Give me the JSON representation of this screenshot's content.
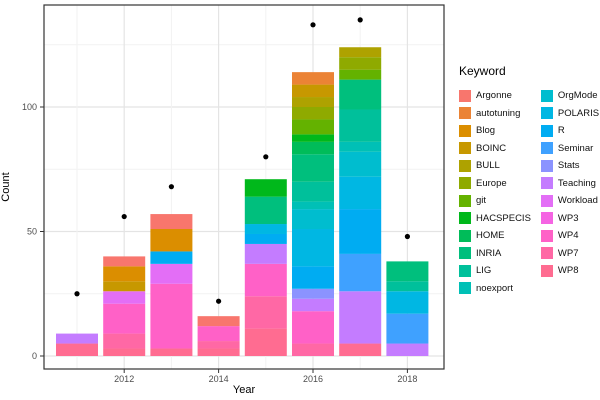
{
  "chart_data": {
    "type": "bar",
    "subtype": "stacked-bar-with-points",
    "title": "",
    "xlabel": "Year",
    "ylabel": "Count",
    "legend_title": "Keyword",
    "x_axis": {
      "ticks": [
        2012,
        2014,
        2016,
        2018
      ],
      "minor_years": [
        2011,
        2013,
        2015,
        2017
      ]
    },
    "y_axis": {
      "ticks": [
        0,
        50,
        100
      ],
      "minor_ticks": [
        25,
        75,
        125
      ],
      "ylim": [
        0,
        140
      ]
    },
    "grid": "on",
    "legend_position": "right",
    "keywords": [
      {
        "name": "Argonne",
        "color": "#F8766D"
      },
      {
        "name": "autotuning",
        "color": "#EB8335"
      },
      {
        "name": "Blog",
        "color": "#DB8E00"
      },
      {
        "name": "BOINC",
        "color": "#C79800"
      },
      {
        "name": "BULL",
        "color": "#AEA200"
      },
      {
        "name": "Europe",
        "color": "#8FAA00"
      },
      {
        "name": "git",
        "color": "#64B200"
      },
      {
        "name": "HACSPECIS",
        "color": "#00B81B"
      },
      {
        "name": "HOME",
        "color": "#00BC59"
      },
      {
        "name": "INRIA",
        "color": "#00BF7D"
      },
      {
        "name": "LIG",
        "color": "#00C09B"
      },
      {
        "name": "noexport",
        "color": "#00C0B6"
      },
      {
        "name": "OrgMode",
        "color": "#00BDCF"
      },
      {
        "name": "POLARIS",
        "color": "#00B7E3"
      },
      {
        "name": "R",
        "color": "#00ACF2"
      },
      {
        "name": "Seminar",
        "color": "#3FA1FF"
      },
      {
        "name": "Stats",
        "color": "#8B93FF"
      },
      {
        "name": "Teaching",
        "color": "#C47CFF"
      },
      {
        "name": "Workload",
        "color": "#E36EF6"
      },
      {
        "name": "WP3",
        "color": "#F564E3"
      },
      {
        "name": "WP4",
        "color": "#FF61C7"
      },
      {
        "name": "WP7",
        "color": "#FF68A5"
      },
      {
        "name": "WP8",
        "color": "#FF6C91"
      }
    ],
    "bars": [
      {
        "year": 2011,
        "total": 9,
        "segments_top_to_bottom": [
          [
            "Teaching",
            4
          ],
          [
            "WP8",
            5
          ]
        ]
      },
      {
        "year": 2012,
        "total": 40,
        "segments_top_to_bottom": [
          [
            "Argonne",
            4
          ],
          [
            "Blog",
            6
          ],
          [
            "BOINC",
            4
          ],
          [
            "Workload",
            5
          ],
          [
            "WP4",
            12
          ],
          [
            "WP7",
            6
          ],
          [
            "WP8",
            3
          ]
        ]
      },
      {
        "year": 2013,
        "total": 57,
        "segments_top_to_bottom": [
          [
            "Argonne",
            6
          ],
          [
            "Blog",
            9
          ],
          [
            "R",
            5
          ],
          [
            "Workload",
            8
          ],
          [
            "WP4",
            26
          ],
          [
            "WP8",
            3
          ]
        ]
      },
      {
        "year": 2014,
        "total": 16,
        "segments_top_to_bottom": [
          [
            "Argonne",
            4
          ],
          [
            "WP4",
            6
          ],
          [
            "WP7",
            3
          ],
          [
            "WP8",
            3
          ]
        ]
      },
      {
        "year": 2015,
        "total": 71,
        "segments_top_to_bottom": [
          [
            "HACSPECIS",
            7
          ],
          [
            "INRIA",
            11
          ],
          [
            "POLARIS",
            4
          ],
          [
            "R",
            4
          ],
          [
            "Teaching",
            8
          ],
          [
            "WP4",
            13
          ],
          [
            "WP7",
            13
          ],
          [
            "WP8",
            11
          ]
        ]
      },
      {
        "year": 2016,
        "total": 114,
        "segments_top_to_bottom": [
          [
            "autotuning",
            5
          ],
          [
            "BOINC",
            5
          ],
          [
            "BULL",
            4
          ],
          [
            "Europe",
            5
          ],
          [
            "git",
            6
          ],
          [
            "HACSPECIS",
            3
          ],
          [
            "HOME",
            5
          ],
          [
            "INRIA",
            11
          ],
          [
            "LIG",
            8
          ],
          [
            "noexport",
            3
          ],
          [
            "OrgMode",
            8
          ],
          [
            "POLARIS",
            15
          ],
          [
            "R",
            9
          ],
          [
            "Stats",
            4
          ],
          [
            "Teaching",
            5
          ],
          [
            "WP4",
            13
          ],
          [
            "WP7",
            5
          ]
        ]
      },
      {
        "year": 2017,
        "total": 124,
        "segments_top_to_bottom": [
          [
            "BULL",
            4
          ],
          [
            "Europe",
            5
          ],
          [
            "git",
            4
          ],
          [
            "INRIA",
            12
          ],
          [
            "LIG",
            13
          ],
          [
            "noexport",
            4
          ],
          [
            "OrgMode",
            10
          ],
          [
            "POLARIS",
            13
          ],
          [
            "R",
            18
          ],
          [
            "Seminar",
            15
          ],
          [
            "Teaching",
            21
          ],
          [
            "WP8",
            5
          ]
        ]
      },
      {
        "year": 2018,
        "total": 38,
        "segments_top_to_bottom": [
          [
            "INRIA",
            8
          ],
          [
            "LIG",
            4
          ],
          [
            "POLARIS",
            9
          ],
          [
            "Seminar",
            12
          ],
          [
            "Teaching",
            5
          ]
        ]
      }
    ],
    "dots": [
      {
        "year": 2011,
        "value": 25
      },
      {
        "year": 2012,
        "value": 56
      },
      {
        "year": 2013,
        "value": 68
      },
      {
        "year": 2014,
        "value": 22
      },
      {
        "year": 2015,
        "value": 80
      },
      {
        "year": 2016,
        "value": 133
      },
      {
        "year": 2017,
        "value": 135
      },
      {
        "year": 2018,
        "value": 48
      }
    ],
    "colors": {
      "dot": "#000000",
      "grid_major": "#E4E4E4",
      "grid_minor": "#F2F2F2",
      "panel_border": "#333333",
      "tick_label": "#4D4D4D"
    }
  }
}
